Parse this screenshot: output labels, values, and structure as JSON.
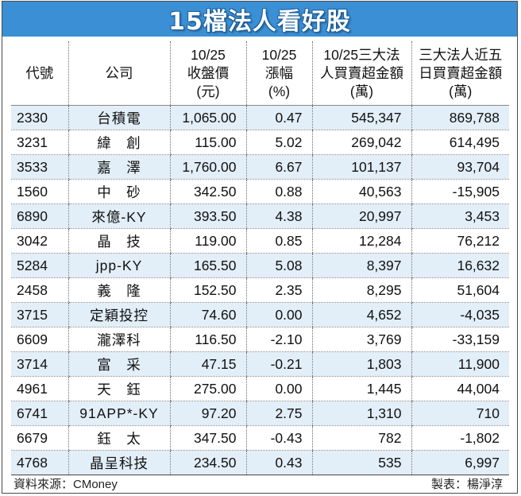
{
  "title": "15檔法人看好股",
  "columns": [
    [
      "代號"
    ],
    [
      "公司"
    ],
    [
      "10/25",
      "收盤價",
      "(元)"
    ],
    [
      "10/25",
      "漲幅",
      "(%)"
    ],
    [
      "10/25三大法",
      "人買賣超金額",
      "(萬)"
    ],
    [
      "三大法人近五",
      "日買賣超金額",
      "(萬)"
    ]
  ],
  "rows": [
    {
      "code": "2330",
      "name": "台積電",
      "close": "1,065.00",
      "change": "0.47",
      "net_buy": "545,347",
      "net_buy_5d": "869,788"
    },
    {
      "code": "3231",
      "name": "緯　創",
      "close": "115.00",
      "change": "5.02",
      "net_buy": "269,042",
      "net_buy_5d": "614,495"
    },
    {
      "code": "3533",
      "name": "嘉　澤",
      "close": "1,760.00",
      "change": "6.67",
      "net_buy": "101,137",
      "net_buy_5d": "93,704"
    },
    {
      "code": "1560",
      "name": "中　砂",
      "close": "342.50",
      "change": "0.88",
      "net_buy": "40,563",
      "net_buy_5d": "-15,905"
    },
    {
      "code": "6890",
      "name": "來億-KY",
      "close": "393.50",
      "change": "4.38",
      "net_buy": "20,997",
      "net_buy_5d": "3,453"
    },
    {
      "code": "3042",
      "name": "晶　技",
      "close": "119.00",
      "change": "0.85",
      "net_buy": "12,284",
      "net_buy_5d": "76,212"
    },
    {
      "code": "5284",
      "name": "jpp-KY",
      "close": "165.50",
      "change": "5.08",
      "net_buy": "8,397",
      "net_buy_5d": "16,632"
    },
    {
      "code": "2458",
      "name": "義　隆",
      "close": "152.50",
      "change": "2.35",
      "net_buy": "8,295",
      "net_buy_5d": "51,604"
    },
    {
      "code": "3715",
      "name": "定穎投控",
      "close": "74.60",
      "change": "0.00",
      "net_buy": "4,652",
      "net_buy_5d": "-4,035"
    },
    {
      "code": "6609",
      "name": "瀧澤科",
      "close": "116.50",
      "change": "-2.10",
      "net_buy": "3,769",
      "net_buy_5d": "-33,159"
    },
    {
      "code": "3714",
      "name": "富　采",
      "close": "47.15",
      "change": "-0.21",
      "net_buy": "1,803",
      "net_buy_5d": "11,900"
    },
    {
      "code": "4961",
      "name": "天　鈺",
      "close": "275.00",
      "change": "0.00",
      "net_buy": "1,445",
      "net_buy_5d": "44,004"
    },
    {
      "code": "6741",
      "name": "91APP*-KY",
      "close": "97.20",
      "change": "2.75",
      "net_buy": "1,310",
      "net_buy_5d": "710"
    },
    {
      "code": "6679",
      "name": "鈺　太",
      "close": "347.50",
      "change": "-0.43",
      "net_buy": "782",
      "net_buy_5d": "-1,802"
    },
    {
      "code": "4768",
      "name": "晶呈科技",
      "close": "234.50",
      "change": "0.43",
      "net_buy": "535",
      "net_buy_5d": "6,997"
    }
  ],
  "footer": {
    "source": "資料來源：CMoney",
    "credit": "製表：楊淨淳"
  }
}
